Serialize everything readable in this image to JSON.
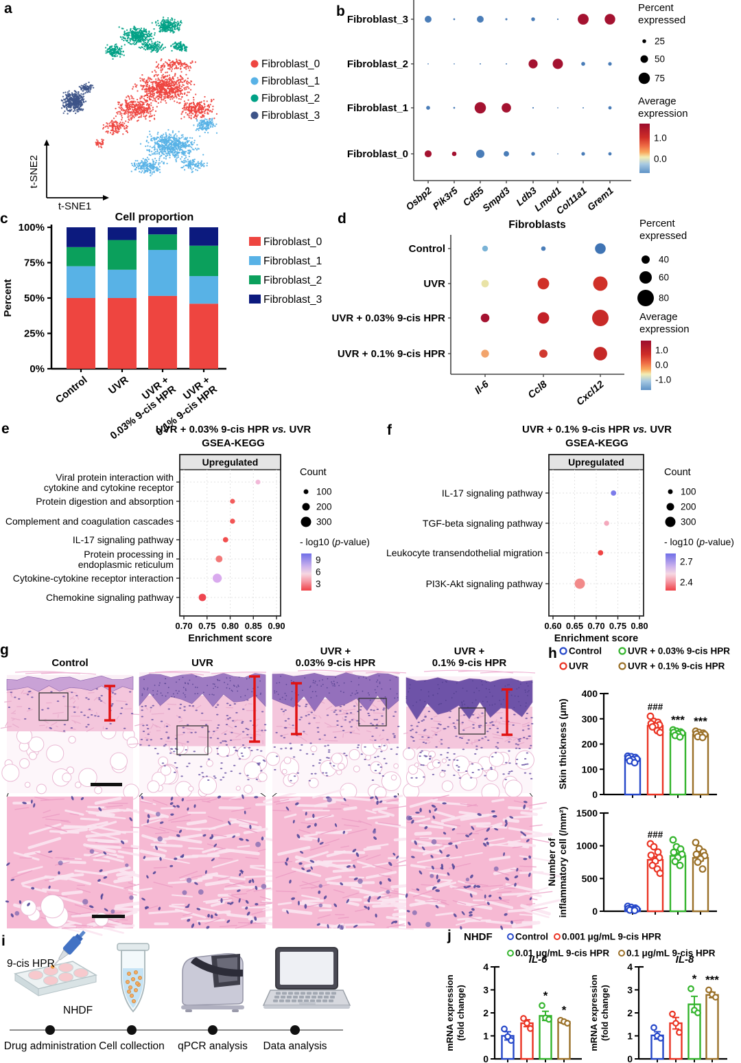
{
  "panels": {
    "a": "a",
    "b": "b",
    "c": "c",
    "d": "d",
    "e": "e",
    "f": "f",
    "g": "g",
    "h": "h",
    "i": "i",
    "j": "j"
  },
  "panel_a": {
    "xlabel": "t-SNE1",
    "ylabel": "t-SNE2"
  },
  "panel_e_title": {
    "pre": "UVR + 0.03% 9-cis HPR",
    "vs": "vs.",
    "post": "UVR",
    "subtitle": "GSEA-KEGG"
  },
  "panel_f_title": {
    "pre": "UVR + 0.1% 9-cis HPR",
    "vs": "vs.",
    "post": "UVR",
    "subtitle": "GSEA-KEGG"
  },
  "panel_g": {
    "columns": [
      {
        "title": "Control"
      },
      {
        "title": "UVR"
      },
      {
        "title": "UVR +\n0.03% 9-cis HPR"
      },
      {
        "title": "UVR +\n0.1% 9-cis HPR"
      }
    ]
  },
  "panel_h": {
    "legend": [
      {
        "label": "Control",
        "color": "#2547c9"
      },
      {
        "label": "UVR",
        "color": "#ea3323"
      },
      {
        "label": "UVR + 0.03% 9-cis HPR",
        "color": "#33b42c"
      },
      {
        "label": "UVR + 0.1% 9-cis HPR",
        "color": "#9a7028"
      }
    ]
  },
  "panel_i": {
    "reagent_label": "9-cis HPR",
    "cells_label": "NHDF",
    "steps": [
      "Drug administration",
      "Cell collection",
      "qPCR analysis",
      "Data analysis"
    ]
  },
  "panel_j": {
    "header": "NHDF",
    "legend": [
      {
        "label": "Control",
        "color": "#2547c9"
      },
      {
        "label": "0.001 μg/mL 9-cis HPR",
        "color": "#ea3323"
      },
      {
        "label": "0.01 μg/mL 9-cis HPR",
        "color": "#33b42c"
      },
      {
        "label": "0.1 μg/mL 9-cis HPR",
        "color": "#9a7028"
      }
    ]
  },
  "chart_data": [
    {
      "id": "tsne",
      "panel": "a",
      "type": "scatter",
      "xlabel": "t-SNE1",
      "ylabel": "t-SNE2",
      "legend": [
        "Fibroblast_0",
        "Fibroblast_1",
        "Fibroblast_2",
        "Fibroblast_3"
      ],
      "clusters": [
        {
          "name": "Fibroblast_0",
          "color": "#ee4540",
          "blobs": [
            [
              238,
              128,
              52,
              28,
              650
            ],
            [
              198,
              158,
              38,
              22,
              330
            ],
            [
              288,
              158,
              32,
              20,
              240
            ],
            [
              168,
              185,
              24,
              15,
              110
            ],
            [
              145,
              208,
              10,
              8,
              35
            ],
            [
              255,
              95,
              40,
              12,
              120
            ]
          ]
        },
        {
          "name": "Fibroblast_1",
          "color": "#58b2e6",
          "blobs": [
            [
              252,
              212,
              50,
              26,
              550
            ],
            [
              300,
              182,
              22,
              15,
              130
            ],
            [
              215,
              242,
              32,
              15,
              180
            ],
            [
              282,
              240,
              25,
              12,
              100
            ]
          ]
        },
        {
          "name": "Fibroblast_2",
          "color": "#00a186",
          "blobs": [
            [
              200,
              52,
              30,
              17,
              300
            ],
            [
              245,
              38,
              26,
              14,
              220
            ],
            [
              168,
              75,
              20,
              12,
              130
            ],
            [
              262,
              68,
              16,
              10,
              90
            ],
            [
              222,
              68,
              24,
              10,
              120
            ]
          ]
        },
        {
          "name": "Fibroblast_3",
          "color": "#3d5488",
          "blobs": [
            [
              108,
              148,
              22,
              20,
              380
            ],
            [
              126,
              128,
              12,
              9,
              70
            ]
          ]
        }
      ]
    },
    {
      "id": "dotplot_b",
      "panel": "b",
      "type": "heatmap",
      "rows": [
        "Fibroblast_3",
        "Fibroblast_2",
        "Fibroblast_1",
        "Fibroblast_0"
      ],
      "cols": [
        "Osbp2",
        "Pik3r5",
        "Cd55",
        "Smpd3",
        "Ldb3",
        "Lmod1",
        "Col11a1",
        "Grem1"
      ],
      "dots": [
        [
          [
            45,
            "#4a7db8"
          ],
          [
            12,
            "#4a7db8"
          ],
          [
            45,
            "#4a7db8"
          ],
          [
            14,
            "#4a7db8"
          ],
          [
            25,
            "#4a7db8"
          ],
          [
            10,
            "#4a7db8"
          ],
          [
            72,
            "#a41230"
          ],
          [
            70,
            "#a41230"
          ]
        ],
        [
          [
            8,
            "#4a7db8"
          ],
          [
            8,
            "#4a7db8"
          ],
          [
            9,
            "#4a7db8"
          ],
          [
            9,
            "#4a7db8"
          ],
          [
            60,
            "#a41230"
          ],
          [
            68,
            "#a41230"
          ],
          [
            26,
            "#4a7db8"
          ],
          [
            24,
            "#4a7db8"
          ]
        ],
        [
          [
            26,
            "#4a7db8"
          ],
          [
            12,
            "#4a7db8"
          ],
          [
            75,
            "#a41230"
          ],
          [
            62,
            "#a41230"
          ],
          [
            10,
            "#4a7db8"
          ],
          [
            8,
            "#4a7db8"
          ],
          [
            9,
            "#4a7db8"
          ],
          [
            22,
            "#4a7db8"
          ]
        ],
        [
          [
            46,
            "#a41230"
          ],
          [
            30,
            "#a41230"
          ],
          [
            55,
            "#4a7db8"
          ],
          [
            36,
            "#4a7db8"
          ],
          [
            25,
            "#4a7db8"
          ],
          [
            8,
            "#4a7db8"
          ],
          [
            24,
            "#4a7db8"
          ],
          [
            22,
            "#4a7db8"
          ]
        ]
      ],
      "legend": {
        "pct_title": "Percent\nexpressed",
        "pct_sizes": [
          25,
          50,
          75
        ],
        "expr_title": "Average\nexpression",
        "expr_ticks": [
          [
            0.3,
            "1.0"
          ],
          [
            0.72,
            "0.0"
          ]
        ]
      }
    },
    {
      "id": "proportion",
      "panel": "c",
      "type": "bar",
      "stacked": true,
      "title": "Cell proportion",
      "ylabel": "Percent",
      "ytick_labels": [
        "0%",
        "25%",
        "50%",
        "75%",
        "100%"
      ],
      "ytick_values": [
        0,
        25,
        50,
        75,
        100
      ],
      "ylim": [
        0,
        100
      ],
      "categories": [
        "Control",
        "UVR",
        "UVR +\n0.03% 9-cis HPR",
        "UVR +\n0.1% 9-cis HPR"
      ],
      "series": [
        {
          "name": "Fibroblast_0",
          "color": "#ee4540",
          "values": [
            50,
            50,
            51.5,
            46
          ]
        },
        {
          "name": "Fibroblast_1",
          "color": "#58b2e6",
          "values": [
            22.5,
            20,
            32.5,
            19.5
          ]
        },
        {
          "name": "Fibroblast_2",
          "color": "#0ba05c",
          "values": [
            13.5,
            21,
            11,
            21.5
          ]
        },
        {
          "name": "Fibroblast_3",
          "color": "#0c1a7e",
          "values": [
            14,
            9,
            5,
            13
          ]
        }
      ]
    },
    {
      "id": "dotplot_d",
      "panel": "d",
      "type": "heatmap",
      "title": "Fibroblasts",
      "rows": [
        "Control",
        "UVR",
        "UVR + 0.03% 9-cis HPR",
        "UVR + 0.1% 9-cis HPR"
      ],
      "cols": [
        "Il-6",
        "Ccl8",
        "Cxcl12"
      ],
      "dots": [
        [
          [
            28,
            "#7ab3d6"
          ],
          [
            22,
            "#4a7db8"
          ],
          [
            52,
            "#3f74b4"
          ]
        ],
        [
          [
            36,
            "#e9e3a6"
          ],
          [
            56,
            "#d03028"
          ],
          [
            70,
            "#d03028"
          ]
        ],
        [
          [
            42,
            "#a41230"
          ],
          [
            56,
            "#c32027"
          ],
          [
            80,
            "#c82a28"
          ]
        ],
        [
          [
            38,
            "#f2a46c"
          ],
          [
            40,
            "#d0392f"
          ],
          [
            66,
            "#c52827"
          ]
        ]
      ],
      "legend": {
        "pct_title": "Percent\nexpressed",
        "pct_sizes": [
          40,
          60,
          80
        ],
        "expr_title": "Average\nexpression",
        "expr_ticks": [
          [
            0.2,
            "1.0"
          ],
          [
            0.5,
            "0.0"
          ],
          [
            0.8,
            "-1.0"
          ]
        ]
      }
    },
    {
      "id": "gsea_e",
      "panel": "e",
      "type": "scatter",
      "facet": "Upregulated",
      "xlabel": "Enrichment score",
      "xlim": [
        0.7,
        0.9
      ],
      "xticks": [
        "0.70",
        "0.75",
        "0.80",
        "0.85",
        "0.90"
      ],
      "rows": [
        {
          "label": "Viral protein interaction with\ncytokine and cytokine receptor",
          "score": 0.86,
          "count": 100,
          "color": "#f2b8d8"
        },
        {
          "label": "Protein digestion and absorption",
          "score": 0.805,
          "count": 105,
          "color": "#f25c5c"
        },
        {
          "label": "Complement and coagulation cascades",
          "score": 0.805,
          "count": 110,
          "color": "#f25555"
        },
        {
          "label": "IL-17 signaling pathway",
          "score": 0.79,
          "count": 120,
          "color": "#f24d4d"
        },
        {
          "label": "Protein processing in\nendoplasmic reticulum",
          "score": 0.776,
          "count": 175,
          "color": "#f27878"
        },
        {
          "label": "Cytokine-cytokine receptor interaction",
          "score": 0.772,
          "count": 255,
          "color": "#d9aaee"
        },
        {
          "label": "Chemokine signaling pathway",
          "score": 0.74,
          "count": 195,
          "color": "#ee4650"
        }
      ],
      "legend": {
        "count_title": "Count",
        "counts": [
          100,
          200,
          300
        ],
        "p_title_pre": "- log10 (",
        "p_title_it": "p",
        "p_title_post": "-value)",
        "p_ticks": [
          [
            0.18,
            "9"
          ],
          [
            0.5,
            "6"
          ],
          [
            0.82,
            "3"
          ]
        ]
      }
    },
    {
      "id": "gsea_f",
      "panel": "f",
      "type": "scatter",
      "facet": "Upregulated",
      "xlabel": "Enrichment score",
      "xlim": [
        0.6,
        0.8
      ],
      "xticks": [
        "0.60",
        "0.65",
        "0.70",
        "0.75",
        "0.80"
      ],
      "rows": [
        {
          "label": "IL-17 signaling pathway",
          "score": 0.74,
          "count": 120,
          "color": "#7b7bea"
        },
        {
          "label": "TGF-beta signaling pathway",
          "score": 0.724,
          "count": 110,
          "color": "#f4a8bc"
        },
        {
          "label": "Leukocyte transendothelial migration",
          "score": 0.71,
          "count": 120,
          "color": "#ef4444"
        },
        {
          "label": "PI3K-Akt signaling pathway",
          "score": 0.662,
          "count": 300,
          "color": "#f28a8a"
        }
      ],
      "legend": {
        "count_title": "Count",
        "counts": [
          100,
          200,
          300
        ],
        "p_title_pre": "- log10 (",
        "p_title_it": "p",
        "p_title_post": "-value)",
        "p_ticks": [
          [
            0.22,
            "2.7"
          ],
          [
            0.78,
            "2.4"
          ]
        ]
      }
    },
    {
      "id": "skin_thickness",
      "panel": "h",
      "type": "bar",
      "ylabel": "Skin thickness (μm)",
      "ylim": [
        0,
        400
      ],
      "yticks": [
        0,
        100,
        200,
        300,
        400
      ],
      "groups": [
        {
          "name": "Control",
          "color": "#2547c9",
          "mean": 142,
          "sem": 10,
          "annotation": "",
          "points": [
            152,
            150,
            147,
            144,
            141,
            138,
            133,
            126
          ]
        },
        {
          "name": "UVR",
          "color": "#ea3323",
          "mean": 272,
          "sem": 12,
          "annotation": "###",
          "points": [
            310,
            290,
            286,
            281,
            276,
            272,
            268,
            253,
            246
          ]
        },
        {
          "name": "UVR + 0.03% 9-cis HPR",
          "color": "#33b42c",
          "mean": 244,
          "sem": 8,
          "annotation": "***",
          "points": [
            256,
            251,
            248,
            246,
            243,
            240,
            234,
            228
          ]
        },
        {
          "name": "UVR + 0.1% 9-cis HPR",
          "color": "#9a7028",
          "mean": 238,
          "sem": 7,
          "annotation": "***",
          "points": [
            251,
            246,
            243,
            240,
            238,
            235,
            229,
            226
          ]
        }
      ]
    },
    {
      "id": "inflammatory_cells",
      "panel": "h",
      "type": "bar",
      "ylabel": "Number of\ninflammatory cell (/mm²)",
      "ylim": [
        0,
        1500
      ],
      "yticks": [
        0,
        500,
        1000,
        1500
      ],
      "groups": [
        {
          "name": "Control",
          "color": "#2547c9",
          "mean": 35,
          "sem": 10,
          "annotation": "",
          "points": [
            75,
            60,
            48,
            40,
            32,
            25,
            18,
            12
          ]
        },
        {
          "name": "UVR",
          "color": "#ea3323",
          "mean": 785,
          "sem": 50,
          "annotation": "###",
          "points": [
            1030,
            985,
            905,
            855,
            820,
            765,
            700,
            645,
            580
          ]
        },
        {
          "name": "UVR + 0.03% 9-cis HPR",
          "color": "#33b42c",
          "mean": 845,
          "sem": 45,
          "annotation": "",
          "points": [
            1090,
            985,
            950,
            900,
            870,
            820,
            760,
            700
          ]
        },
        {
          "name": "UVR + 0.1% 9-cis HPR",
          "color": "#9a7028",
          "mean": 815,
          "sem": 45,
          "annotation": "",
          "points": [
            1050,
            955,
            905,
            870,
            850,
            800,
            750,
            645
          ]
        }
      ]
    },
    {
      "id": "il6",
      "panel": "j",
      "type": "bar",
      "title": "IL-6",
      "ylabel": "mRNA expression\n(fold change)",
      "ylim": [
        0,
        4
      ],
      "yticks": [
        0,
        1,
        2,
        3,
        4
      ],
      "groups": [
        {
          "name": "Control",
          "color": "#2547c9",
          "mean": 1.0,
          "sem": 0.18,
          "annotation": "",
          "points": [
            1.3,
            0.97,
            0.8
          ]
        },
        {
          "name": "0.001 μg/mL 9-cis HPR",
          "color": "#ea3323",
          "mean": 1.55,
          "sem": 0.15,
          "annotation": "",
          "points": [
            1.76,
            1.55,
            1.32
          ]
        },
        {
          "name": "0.01 μg/mL 9-cis HPR",
          "color": "#33b42c",
          "mean": 1.87,
          "sem": 0.2,
          "annotation": "*",
          "points": [
            2.32,
            1.78,
            1.72
          ]
        },
        {
          "name": "0.1 μg/mL 9-cis HPR",
          "color": "#9a7028",
          "mean": 1.61,
          "sem": 0.06,
          "annotation": "*",
          "points": [
            1.68,
            1.62,
            1.55
          ]
        }
      ]
    },
    {
      "id": "il8",
      "panel": "j",
      "type": "bar",
      "title": "IL-8",
      "ylabel": "mRNA expression\n(fold change)",
      "ylim": [
        0,
        4
      ],
      "yticks": [
        0,
        1,
        2,
        3,
        4
      ],
      "groups": [
        {
          "name": "Control",
          "color": "#2547c9",
          "mean": 1.02,
          "sem": 0.16,
          "annotation": "",
          "points": [
            1.36,
            1.0,
            0.9
          ]
        },
        {
          "name": "0.001 μg/mL 9-cis HPR",
          "color": "#ea3323",
          "mean": 1.55,
          "sem": 0.25,
          "annotation": "",
          "points": [
            1.95,
            1.55,
            1.15
          ]
        },
        {
          "name": "0.01 μg/mL 9-cis HPR",
          "color": "#33b42c",
          "mean": 2.37,
          "sem": 0.35,
          "annotation": "*",
          "points": [
            3.05,
            2.12,
            2.0
          ]
        },
        {
          "name": "0.1 μg/mL 9-cis HPR",
          "color": "#9a7028",
          "mean": 2.78,
          "sem": 0.12,
          "annotation": "***",
          "points": [
            3.0,
            2.8,
            2.68
          ]
        }
      ]
    }
  ]
}
